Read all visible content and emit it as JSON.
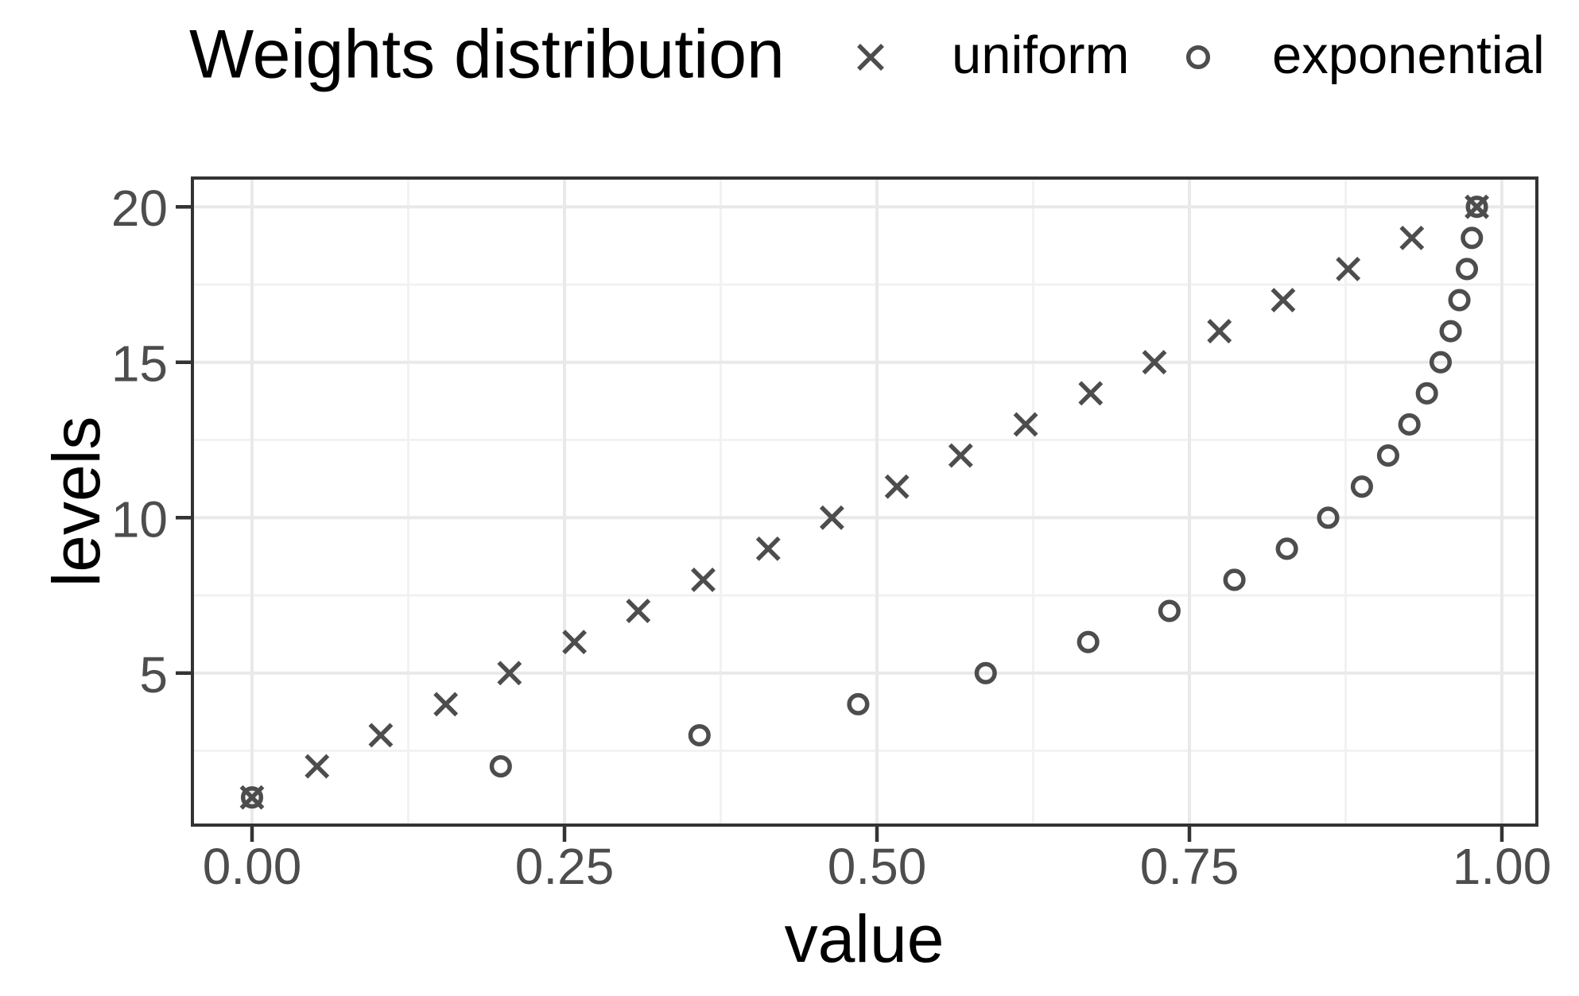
{
  "chart_data": {
    "type": "scatter",
    "legend_title": "Weights distribution",
    "xlabel": "value",
    "ylabel": "levels",
    "legend_position": "top",
    "grid": true,
    "x_axis": {
      "breaks": [
        0,
        0.25,
        0.5,
        0.75,
        1.0
      ],
      "labels": [
        "0.00",
        "0.25",
        "0.50",
        "0.75",
        "1.00"
      ],
      "minor_breaks": [
        0.125,
        0.375,
        0.625,
        0.875
      ],
      "limits": [
        -0.049,
        1.029
      ]
    },
    "y_axis": {
      "breaks": [
        5,
        10,
        15,
        20
      ],
      "labels": [
        "5",
        "10",
        "15",
        "20"
      ],
      "minor_breaks": [
        2.5,
        7.5,
        12.5,
        17.5
      ],
      "limits": [
        0.05,
        20.95
      ]
    },
    "series": [
      {
        "name": "uniform",
        "marker": "x",
        "levels": [
          1,
          2,
          3,
          4,
          5,
          6,
          7,
          8,
          9,
          10,
          11,
          12,
          13,
          14,
          15,
          16,
          17,
          18,
          19,
          20
        ],
        "values": [
          0.0,
          0.052,
          0.103,
          0.155,
          0.206,
          0.258,
          0.309,
          0.361,
          0.413,
          0.464,
          0.516,
          0.567,
          0.619,
          0.671,
          0.722,
          0.774,
          0.825,
          0.877,
          0.928,
          0.98
        ]
      },
      {
        "name": "exponential",
        "marker": "circle",
        "levels": [
          1,
          2,
          3,
          4,
          5,
          6,
          7,
          8,
          9,
          10,
          11,
          12,
          13,
          14,
          15,
          16,
          17,
          18,
          19,
          20
        ],
        "values": [
          0.0,
          0.199,
          0.358,
          0.485,
          0.587,
          0.669,
          0.734,
          0.786,
          0.828,
          0.861,
          0.888,
          0.909,
          0.926,
          0.94,
          0.951,
          0.959,
          0.966,
          0.972,
          0.976,
          0.98
        ]
      }
    ],
    "colors": {
      "point": "#4D4D4D",
      "text": "#000000",
      "tick_label": "#4D4D4D",
      "axis_line": "#333333",
      "grid_major": "#E9E9E9",
      "grid_minor": "#F2F2F2",
      "background": "#FFFFFF"
    }
  }
}
